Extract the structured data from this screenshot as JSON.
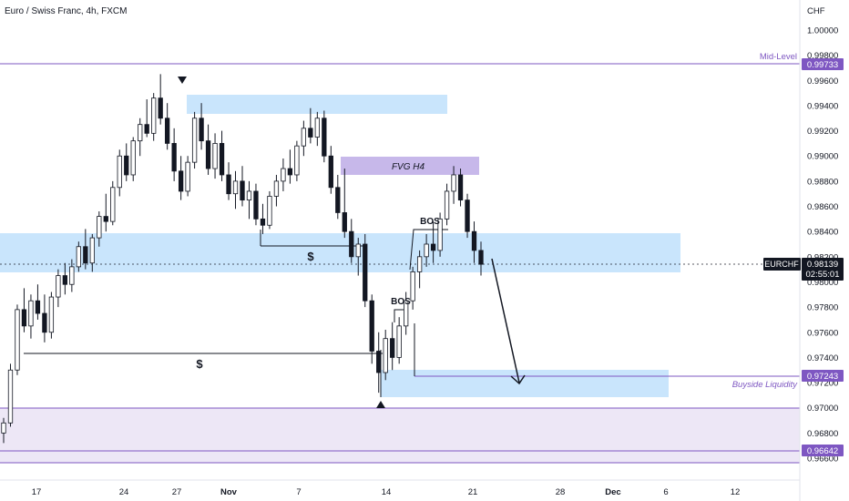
{
  "header": {
    "symbol_title": "Euro / Swiss Franc, 4h, FXCM"
  },
  "price_axis": {
    "currency": "CHF",
    "ticks": [
      "1.00000",
      "0.99800",
      "0.99600",
      "0.99400",
      "0.99200",
      "0.99000",
      "0.98800",
      "0.98600",
      "0.98400",
      "0.98200",
      "0.98000",
      "0.97800",
      "0.97600",
      "0.97400",
      "0.97200",
      "0.97000",
      "0.96800",
      "0.96600"
    ],
    "ticker_label": "EURCHF",
    "current_price": "0.98139",
    "countdown": "02:55:01",
    "midlevel_price": "0.99733",
    "buyside_price": "0.97243",
    "low_level_price": "0.96642"
  },
  "time_axis": {
    "ticks": [
      "17",
      "24",
      "27",
      "Nov",
      "7",
      "14",
      "21",
      "28",
      "Dec",
      "6",
      "12"
    ]
  },
  "annotations": {
    "mid_level": "Mid-Level",
    "fvg": "FVG H4",
    "bos_upper": "BOS",
    "bos_lower": "BOS",
    "dollar_upper": "$",
    "dollar_lower": "$",
    "buyside_liquidity": "Buyside Liquidity"
  },
  "colors": {
    "accent_purple": "#7e57c2",
    "zone_blue": "#bbdefb",
    "zone_purple_fill": "#ede7f6",
    "fvg_fill": "#c7b8ea",
    "bull_candle": "#ffffff",
    "bear_candle": "#131722",
    "ticker_bg": "#131722"
  },
  "chart_data": {
    "type": "candlestick",
    "title": "Euro / Swiss Franc, 4h, FXCM",
    "ylim": [
      0.9655,
      1.0005
    ],
    "xlabel": "",
    "ylabel": "CHF",
    "ohlc": [
      [
        0.968,
        0.9692,
        0.9672,
        0.9688
      ],
      [
        0.9688,
        0.9735,
        0.9685,
        0.973
      ],
      [
        0.973,
        0.9782,
        0.9726,
        0.9778
      ],
      [
        0.9778,
        0.9795,
        0.976,
        0.9765
      ],
      [
        0.9765,
        0.979,
        0.9755,
        0.9785
      ],
      [
        0.9785,
        0.9798,
        0.977,
        0.9775
      ],
      [
        0.9775,
        0.979,
        0.9752,
        0.976
      ],
      [
        0.976,
        0.9792,
        0.9755,
        0.9788
      ],
      [
        0.9788,
        0.981,
        0.978,
        0.9805
      ],
      [
        0.9805,
        0.9815,
        0.979,
        0.9798
      ],
      [
        0.9798,
        0.9818,
        0.9792,
        0.9812
      ],
      [
        0.9812,
        0.9832,
        0.9808,
        0.9828
      ],
      [
        0.9828,
        0.9842,
        0.981,
        0.9815
      ],
      [
        0.9815,
        0.9838,
        0.9808,
        0.9835
      ],
      [
        0.9835,
        0.9856,
        0.9828,
        0.9852
      ],
      [
        0.9852,
        0.987,
        0.984,
        0.9848
      ],
      [
        0.9848,
        0.988,
        0.9845,
        0.9875
      ],
      [
        0.9875,
        0.9905,
        0.9868,
        0.99
      ],
      [
        0.99,
        0.991,
        0.988,
        0.9885
      ],
      [
        0.9885,
        0.9915,
        0.988,
        0.9912
      ],
      [
        0.9912,
        0.993,
        0.99,
        0.9925
      ],
      [
        0.9925,
        0.9945,
        0.9915,
        0.9918
      ],
      [
        0.9918,
        0.995,
        0.9912,
        0.9946
      ],
      [
        0.9946,
        0.9965,
        0.9925,
        0.993
      ],
      [
        0.993,
        0.9942,
        0.9905,
        0.991
      ],
      [
        0.991,
        0.9922,
        0.988,
        0.9888
      ],
      [
        0.9888,
        0.99,
        0.9865,
        0.9872
      ],
      [
        0.9872,
        0.99,
        0.9868,
        0.9895
      ],
      [
        0.9895,
        0.9935,
        0.989,
        0.993
      ],
      [
        0.993,
        0.9942,
        0.9905,
        0.9912
      ],
      [
        0.9912,
        0.9925,
        0.9885,
        0.989
      ],
      [
        0.989,
        0.9918,
        0.9882,
        0.991
      ],
      [
        0.991,
        0.992,
        0.988,
        0.9885
      ],
      [
        0.9885,
        0.9895,
        0.9865,
        0.987
      ],
      [
        0.987,
        0.9888,
        0.9858,
        0.988
      ],
      [
        0.988,
        0.9892,
        0.986,
        0.9865
      ],
      [
        0.9865,
        0.988,
        0.985,
        0.9872
      ],
      [
        0.9872,
        0.9878,
        0.9845,
        0.985
      ],
      [
        0.985,
        0.9862,
        0.9838,
        0.9845
      ],
      [
        0.9845,
        0.9872,
        0.9842,
        0.9868
      ],
      [
        0.9868,
        0.9885,
        0.986,
        0.988
      ],
      [
        0.988,
        0.9898,
        0.9872,
        0.989
      ],
      [
        0.989,
        0.9905,
        0.9878,
        0.9885
      ],
      [
        0.9885,
        0.9912,
        0.988,
        0.9908
      ],
      [
        0.9908,
        0.9928,
        0.99,
        0.9922
      ],
      [
        0.9922,
        0.9938,
        0.991,
        0.9915
      ],
      [
        0.9915,
        0.9935,
        0.9908,
        0.993
      ],
      [
        0.993,
        0.9936,
        0.9895,
        0.99
      ],
      [
        0.99,
        0.9908,
        0.987,
        0.9875
      ],
      [
        0.9875,
        0.9885,
        0.985,
        0.9855
      ],
      [
        0.9855,
        0.989,
        0.9835,
        0.984
      ],
      [
        0.984,
        0.985,
        0.9815,
        0.982
      ],
      [
        0.982,
        0.9835,
        0.9805,
        0.983
      ],
      [
        0.983,
        0.9838,
        0.978,
        0.9785
      ],
      [
        0.9785,
        0.979,
        0.9735,
        0.9745
      ],
      [
        0.9745,
        0.976,
        0.9712,
        0.9728
      ],
      [
        0.9728,
        0.9762,
        0.9722,
        0.9755
      ],
      [
        0.9755,
        0.9768,
        0.973,
        0.974
      ],
      [
        0.974,
        0.9772,
        0.9735,
        0.9765
      ],
      [
        0.9765,
        0.9792,
        0.9758,
        0.9785
      ],
      [
        0.9785,
        0.9812,
        0.9778,
        0.9808
      ],
      [
        0.9808,
        0.9825,
        0.9795,
        0.982
      ],
      [
        0.982,
        0.9838,
        0.9812,
        0.983
      ],
      [
        0.983,
        0.9848,
        0.9815,
        0.9825
      ],
      [
        0.9825,
        0.9855,
        0.982,
        0.985
      ],
      [
        0.985,
        0.9878,
        0.9845,
        0.9872
      ],
      [
        0.9872,
        0.9892,
        0.9862,
        0.9885
      ],
      [
        0.9885,
        0.989,
        0.986,
        0.9865
      ],
      [
        0.9865,
        0.987,
        0.9835,
        0.984
      ],
      [
        0.984,
        0.9848,
        0.9815,
        0.9825
      ],
      [
        0.9825,
        0.9832,
        0.9805,
        0.9814
      ]
    ],
    "price_levels": {
      "mid_level": 0.99733,
      "current": 0.98139,
      "buyside_liquidity": 0.97243,
      "lower_level": 0.96642
    }
  }
}
